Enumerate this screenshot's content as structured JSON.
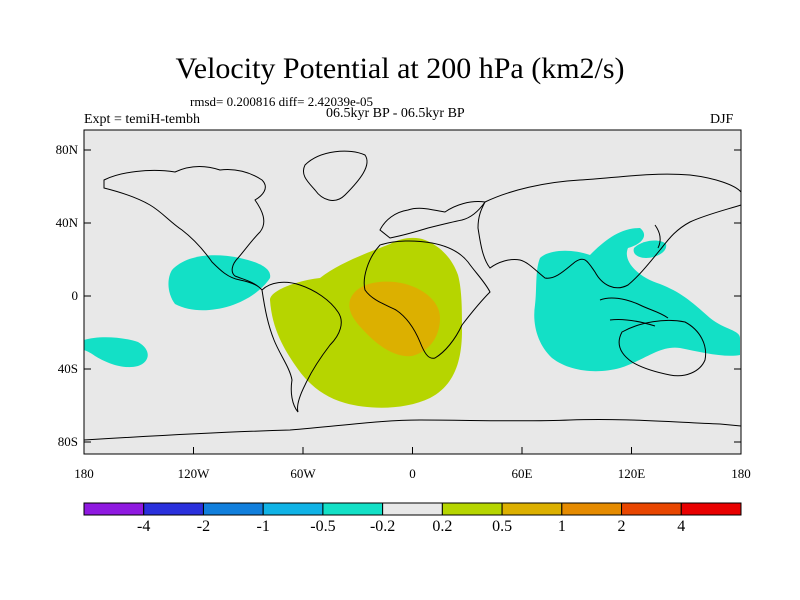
{
  "title": "Velocity Potential at 200 hPa (km2/s)",
  "stats": "rmsd= 0.200816 diff= 2.42039e-05",
  "experiment": "Expt = temiH-tembh",
  "period": "06.5kyr BP - 06.5kyr BP",
  "season": "DJF",
  "lat_labels": [
    "80N",
    "40N",
    "0",
    "40S",
    "80S"
  ],
  "lon_labels": [
    "180",
    "120W",
    "60W",
    "0",
    "60E",
    "120E",
    "180"
  ],
  "colorbar": {
    "colors": [
      "#8f19e0",
      "#2a30dc",
      "#117fdc",
      "#10b3e6",
      "#13e0c6",
      "#e8e8e8",
      "#b6d500",
      "#dcb000",
      "#e58b00",
      "#e84600",
      "#e80000"
    ],
    "labels": [
      "-4",
      "-2",
      "-1",
      "-0.5",
      "-0.2",
      "0.2",
      "0.5",
      "1",
      "2",
      "4"
    ]
  },
  "colors": {
    "background": "#e8e8e8",
    "cyan": "#13e0c6",
    "green": "#b6d500",
    "orange": "#dcb000",
    "coast": "#000000"
  }
}
